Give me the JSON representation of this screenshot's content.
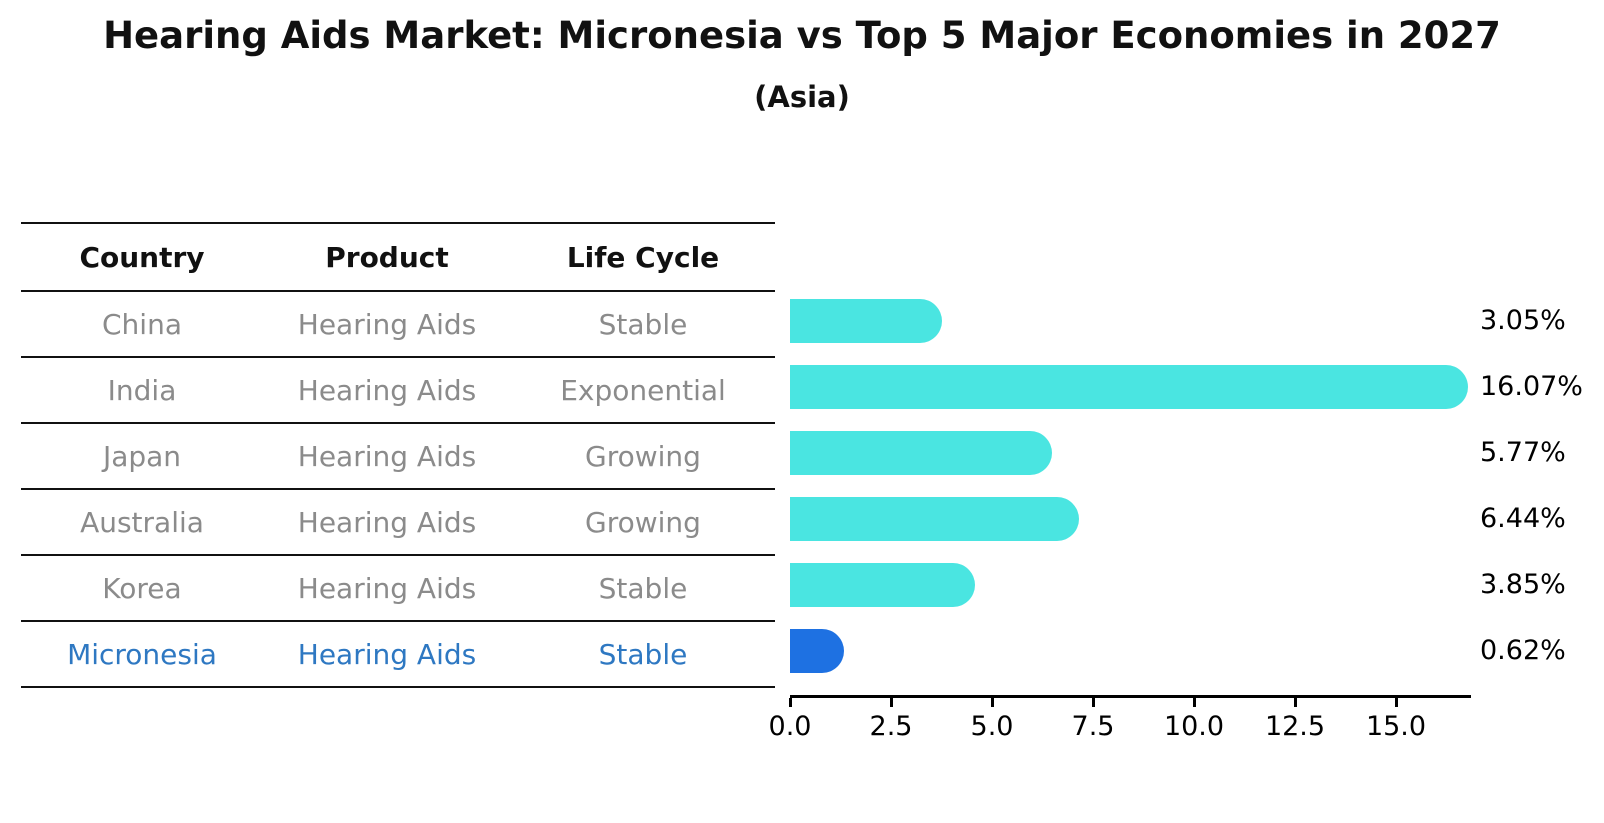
{
  "title": "Hearing Aids Market: Micronesia vs Top 5 Major Economies in 2027",
  "subtitle": "(Asia)",
  "table": {
    "columns": [
      "Country",
      "Product",
      "Life Cycle"
    ],
    "rows": [
      {
        "country": "China",
        "product": "Hearing Aids",
        "life_cycle": "Stable",
        "value_label": "3.05%",
        "highlight": false
      },
      {
        "country": "India",
        "product": "Hearing Aids",
        "life_cycle": "Exponential",
        "value_label": "16.07%",
        "highlight": false
      },
      {
        "country": "Japan",
        "product": "Hearing Aids",
        "life_cycle": "Growing",
        "value_label": "5.77%",
        "highlight": false
      },
      {
        "country": "Australia",
        "product": "Hearing Aids",
        "life_cycle": "Growing",
        "value_label": "6.44%",
        "highlight": false
      },
      {
        "country": "Korea",
        "product": "Hearing Aids",
        "life_cycle": "Stable",
        "value_label": "3.85%",
        "highlight": false
      },
      {
        "country": "Micronesia",
        "product": "Hearing Aids",
        "life_cycle": "Stable",
        "value_label": "0.62%",
        "highlight": true
      }
    ]
  },
  "chart_data": {
    "type": "bar",
    "orientation": "horizontal",
    "title": "Hearing Aids Market: Micronesia vs Top 5 Major Economies in 2027",
    "subtitle": "(Asia)",
    "categories": [
      "China",
      "India",
      "Japan",
      "Australia",
      "Korea",
      "Micronesia"
    ],
    "values": [
      3.05,
      16.07,
      5.77,
      6.44,
      3.85,
      0.62
    ],
    "value_labels": [
      "3.05%",
      "16.07%",
      "5.77%",
      "6.44%",
      "3.85%",
      "0.62%"
    ],
    "xlabel": "",
    "ylabel": "",
    "xlim": [
      0,
      16.9
    ],
    "xticks": [
      0.0,
      2.5,
      5.0,
      7.5,
      10.0,
      12.5,
      15.0
    ],
    "xtick_labels": [
      "0.0",
      "2.5",
      "5.0",
      "7.5",
      "10.0",
      "12.5",
      "15.0"
    ],
    "grid": false,
    "legend": "none",
    "colors": {
      "bar_default": "#4AE5E1",
      "bar_highlight": "#1E71E2",
      "highlight_text": "#2E78C2",
      "row_text": "#8B8B8B",
      "header_text": "#111111",
      "value_text": "#000000",
      "axis": "#000000",
      "background": "#FFFFFF"
    }
  }
}
